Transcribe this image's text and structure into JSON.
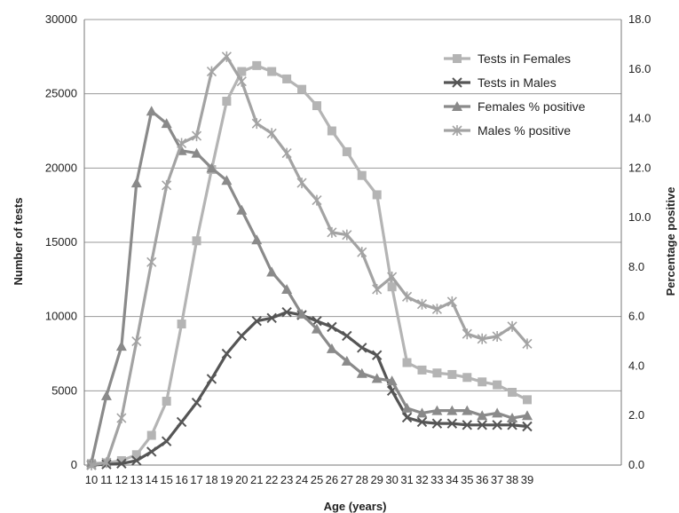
{
  "chart_data": {
    "type": "line",
    "xlabel": "Age (years)",
    "ylabel_left": "Number of tests",
    "ylabel_right": "Percentage positive",
    "x": [
      10,
      11,
      12,
      13,
      14,
      15,
      16,
      17,
      18,
      19,
      20,
      21,
      22,
      23,
      24,
      25,
      26,
      27,
      28,
      29,
      30,
      31,
      32,
      33,
      34,
      35,
      36,
      37,
      38,
      39
    ],
    "ylim_left": [
      0,
      30000
    ],
    "ylim_right": [
      0,
      18
    ],
    "yticks_left": [
      "0",
      "5000",
      "10000",
      "15000",
      "20000",
      "25000",
      "30000"
    ],
    "yticks_right": [
      "0.0",
      "2.0",
      "4.0",
      "6.0",
      "8.0",
      "10.0",
      "12.0",
      "14.0",
      "16.0",
      "18.0"
    ],
    "grid": true,
    "legend_position": "top-right",
    "series": [
      {
        "name": "Tests in Females",
        "axis": "left",
        "marker": "square",
        "color": "#b4b4b4",
        "values": [
          100,
          150,
          300,
          700,
          2000,
          4300,
          9500,
          15100,
          19900,
          24500,
          26500,
          26900,
          26500,
          26000,
          25300,
          24200,
          22500,
          21100,
          19500,
          18200,
          12000,
          6900,
          6400,
          6200,
          6100,
          5900,
          5600,
          5400,
          4900,
          4400
        ]
      },
      {
        "name": "Tests in Males",
        "axis": "left",
        "marker": "x",
        "color": "#555555",
        "values": [
          0,
          50,
          100,
          300,
          900,
          1600,
          2900,
          4200,
          5800,
          7500,
          8700,
          9700,
          9900,
          10300,
          10100,
          9700,
          9300,
          8700,
          7900,
          7400,
          5000,
          3200,
          2900,
          2800,
          2800,
          2700,
          2700,
          2700,
          2700,
          2600
        ]
      },
      {
        "name": "Females % positive",
        "axis": "right",
        "marker": "triangle",
        "color": "#8a8a8a",
        "values": [
          0.1,
          2.8,
          4.8,
          11.4,
          14.3,
          13.8,
          12.7,
          12.6,
          12.0,
          11.5,
          10.3,
          9.1,
          7.8,
          7.1,
          6.1,
          5.5,
          4.7,
          4.2,
          3.7,
          3.5,
          3.4,
          2.3,
          2.1,
          2.2,
          2.2,
          2.2,
          2.0,
          2.1,
          1.9,
          2.0
        ]
      },
      {
        "name": "Males % positive",
        "axis": "right",
        "marker": "asterisk",
        "color": "#a3a3a3",
        "values": [
          0,
          0.1,
          1.9,
          5.0,
          8.2,
          11.3,
          13.0,
          13.3,
          15.9,
          16.5,
          15.5,
          13.8,
          13.4,
          12.6,
          11.4,
          10.7,
          9.4,
          9.3,
          8.6,
          7.1,
          7.6,
          6.8,
          6.5,
          6.3,
          6.6,
          5.3,
          5.1,
          5.2,
          5.6,
          4.9
        ]
      }
    ]
  }
}
